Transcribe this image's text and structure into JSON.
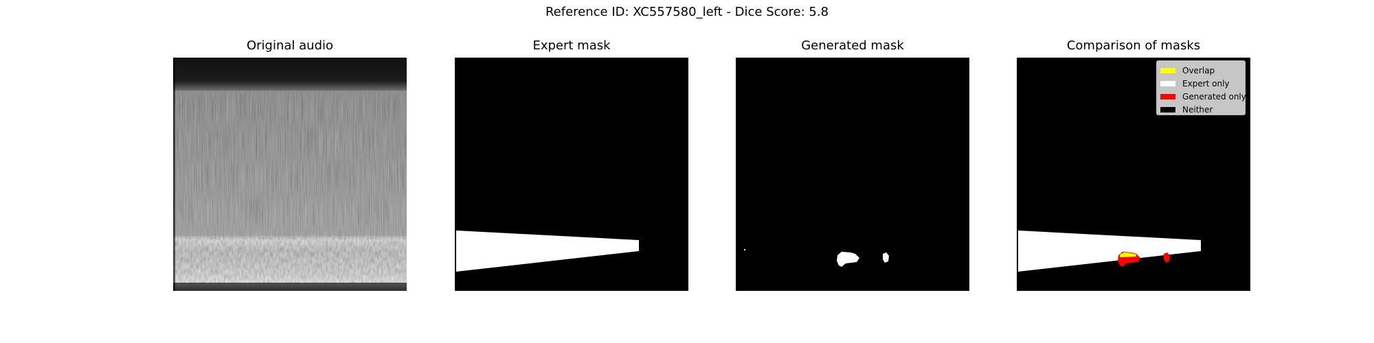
{
  "figure": {
    "title": "Reference ID: XC557580_left - Dice Score: 5.8"
  },
  "panels": [
    {
      "title": "Original audio"
    },
    {
      "title": "Expert mask"
    },
    {
      "title": "Generated mask"
    },
    {
      "title": "Comparison of masks"
    }
  ],
  "legend": {
    "items": [
      {
        "label": "Overlap",
        "color": "#ffff00"
      },
      {
        "label": "Expert only",
        "color": "#ffffff"
      },
      {
        "label": "Generated only",
        "color": "#ff0000"
      },
      {
        "label": "Neither",
        "color": "#000000"
      }
    ]
  }
}
